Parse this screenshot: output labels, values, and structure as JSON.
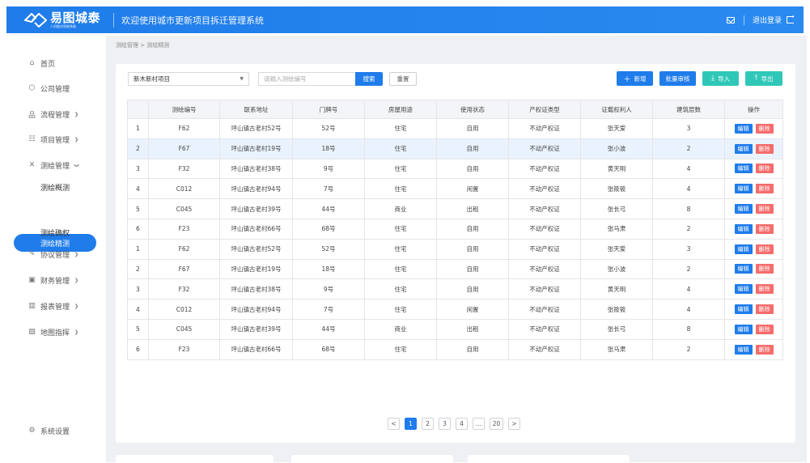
{
  "header": {
    "logo_title": "易图城泰",
    "logo_sub": "人机融合智能装备",
    "welcome": "欢迎使用城市更新项目拆迁管理系统",
    "logout": "退出登录"
  },
  "sidebar": {
    "items": [
      {
        "label": "首页",
        "icon": "home-icon"
      },
      {
        "label": "公司管理",
        "icon": "building-icon"
      },
      {
        "label": "流程管理",
        "icon": "flow-icon"
      },
      {
        "label": "项目管理",
        "icon": "project-icon"
      },
      {
        "label": "测绘管理",
        "icon": "survey-icon"
      },
      {
        "label": "协议管理",
        "icon": "agreement-icon"
      },
      {
        "label": "财务管理",
        "icon": "finance-icon"
      },
      {
        "label": "报表管理",
        "icon": "report-icon"
      },
      {
        "label": "地图指挥",
        "icon": "map-icon"
      }
    ],
    "sub_items": [
      "测绘概测",
      "测绘精测",
      "测绘确权"
    ],
    "settings": "系统设置"
  },
  "breadcrumb": "测绘管理 > 测绘精测",
  "toolbar": {
    "project_select": "新木新村项目",
    "search_placeholder": "请输入测绘编号",
    "search": "搜索",
    "reset": "重置",
    "add": "新增",
    "batch_review": "批量审核",
    "import": "导入",
    "export": "导出"
  },
  "table": {
    "headers": [
      "",
      "测绘编号",
      "联系地址",
      "门牌号",
      "房屋用途",
      "使用状态",
      "产权证类型",
      "证载权利人",
      "建筑层数",
      "操作"
    ],
    "edit": "编辑",
    "delete": "删除",
    "rows": [
      [
        "1",
        "F62",
        "坪山镇古老村52号",
        "52号",
        "住宅",
        "自用",
        "不动产权证",
        "张天爱",
        "3"
      ],
      [
        "2",
        "F67",
        "坪山镇古老村19号",
        "18号",
        "住宅",
        "自用",
        "不动产权证",
        "张小波",
        "2"
      ],
      [
        "3",
        "F32",
        "坪山镇古老村38号",
        "9号",
        "住宅",
        "自用",
        "不动产权证",
        "黄天明",
        "4"
      ],
      [
        "4",
        "C012",
        "坪山镇古老村94号",
        "7号",
        "住宅",
        "闲置",
        "不动产权证",
        "张筱筱",
        "4"
      ],
      [
        "5",
        "C045",
        "坪山镇古老村39号",
        "44号",
        "商业",
        "出租",
        "不动产权证",
        "张长弓",
        "8"
      ],
      [
        "6",
        "F23",
        "坪山镇古老村66号",
        "68号",
        "住宅",
        "自用",
        "不动产权证",
        "张马肃",
        "2"
      ],
      [
        "1",
        "F62",
        "坪山镇古老村52号",
        "52号",
        "住宅",
        "自用",
        "不动产权证",
        "张天爱",
        "3"
      ],
      [
        "2",
        "F67",
        "坪山镇古老村19号",
        "18号",
        "住宅",
        "自用",
        "不动产权证",
        "张小波",
        "2"
      ],
      [
        "3",
        "F32",
        "坪山镇古老村38号",
        "9号",
        "住宅",
        "自用",
        "不动产权证",
        "黄天明",
        "4"
      ],
      [
        "4",
        "C012",
        "坪山镇古老村94号",
        "7号",
        "住宅",
        "闲置",
        "不动产权证",
        "张筱筱",
        "4"
      ],
      [
        "5",
        "C045",
        "坪山镇古老村39号",
        "44号",
        "商业",
        "出租",
        "不动产权证",
        "张长弓",
        "8"
      ],
      [
        "6",
        "F23",
        "坪山镇古老村66号",
        "68号",
        "住宅",
        "自用",
        "不动产权证",
        "张马肃",
        "2"
      ]
    ]
  },
  "pagination": {
    "prev": "<",
    "pages": [
      "1",
      "2",
      "3",
      "4",
      "...",
      "20"
    ],
    "next": ">",
    "current": "1"
  },
  "colors": {
    "primary": "#1f7cea",
    "teal": "#2fc7b8",
    "danger": "#f56c6c"
  }
}
